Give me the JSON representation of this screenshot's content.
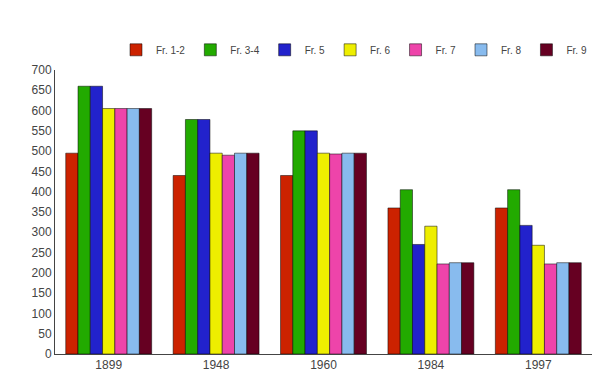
{
  "chart_data": {
    "type": "bar",
    "categories": [
      "1899",
      "1948",
      "1960",
      "1984",
      "1997"
    ],
    "series": [
      {
        "name": "Fr. 1-2",
        "color": "#cc2200",
        "values": [
          495,
          440,
          440,
          360,
          360
        ]
      },
      {
        "name": "Fr. 3-4",
        "color": "#22aa00",
        "values": [
          660,
          578,
          550,
          405,
          405
        ]
      },
      {
        "name": "Fr. 5",
        "color": "#2222cc",
        "values": [
          660,
          578,
          550,
          270,
          317
        ]
      },
      {
        "name": "Fr. 6",
        "color": "#eeee00",
        "values": [
          605,
          495,
          495,
          315,
          268
        ]
      },
      {
        "name": "Fr. 7",
        "color": "#ee44aa",
        "values": [
          605,
          490,
          493,
          222,
          222
        ]
      },
      {
        "name": "Fr. 8",
        "color": "#88bbee",
        "values": [
          605,
          495,
          495,
          225,
          225
        ]
      },
      {
        "name": "Fr. 9",
        "color": "#660022",
        "values": [
          605,
          495,
          495,
          225,
          225
        ]
      }
    ],
    "ylim": [
      0,
      700
    ],
    "yticks": [
      0,
      50,
      100,
      150,
      200,
      250,
      300,
      350,
      400,
      450,
      500,
      550,
      600,
      650,
      700
    ],
    "grid": false,
    "legend": "top right"
  }
}
